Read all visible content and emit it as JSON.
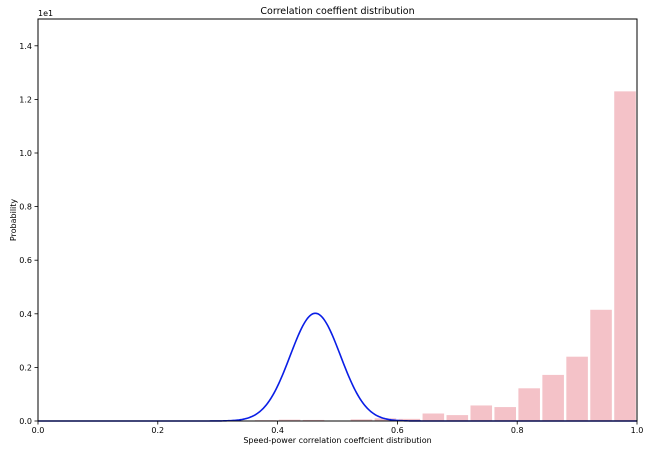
{
  "chart_data": {
    "type": "bar",
    "title": "Correlation coeffient distribution",
    "xlabel": "Speed-power correlation coeffcient distribution",
    "ylabel": "Probability",
    "y_offset_text": "1e1",
    "xlim": [
      0.0,
      1.0
    ],
    "ylim": [
      0.0,
      1.5
    ],
    "xticks": [
      0.0,
      0.2,
      0.4,
      0.6,
      0.8,
      1.0
    ],
    "xtick_labels": [
      "0.0",
      "0.2",
      "0.4",
      "0.6",
      "0.8",
      "1.0"
    ],
    "yticks": [
      0.0,
      0.2,
      0.4,
      0.6,
      0.8,
      1.0,
      1.2,
      1.4
    ],
    "ytick_labels": [
      "0.0",
      "0.2",
      "0.4",
      "0.6",
      "0.8",
      "1.0",
      "1.2",
      "1.4"
    ],
    "grid": false,
    "bar_width": 0.036,
    "bars": [
      {
        "x": 0.38,
        "value": 0.003
      },
      {
        "x": 0.42,
        "value": 0.005
      },
      {
        "x": 0.46,
        "value": 0.004
      },
      {
        "x": 0.5,
        "value": 0.001
      },
      {
        "x": 0.54,
        "value": 0.006
      },
      {
        "x": 0.58,
        "value": 0.01
      },
      {
        "x": 0.62,
        "value": 0.008
      },
      {
        "x": 0.66,
        "value": 0.028
      },
      {
        "x": 0.7,
        "value": 0.022
      },
      {
        "x": 0.74,
        "value": 0.058
      },
      {
        "x": 0.78,
        "value": 0.052
      },
      {
        "x": 0.82,
        "value": 0.122
      },
      {
        "x": 0.86,
        "value": 0.172
      },
      {
        "x": 0.9,
        "value": 0.24
      },
      {
        "x": 0.94,
        "value": 0.415
      },
      {
        "x": 0.98,
        "value": 1.23
      }
    ],
    "curve": {
      "type": "normal",
      "mean": 0.463,
      "peak": 0.402,
      "sigma": 0.042
    },
    "colors": {
      "bars": "#f4c2c8",
      "curve": "#0a1ee6",
      "axes": "#000000"
    }
  }
}
